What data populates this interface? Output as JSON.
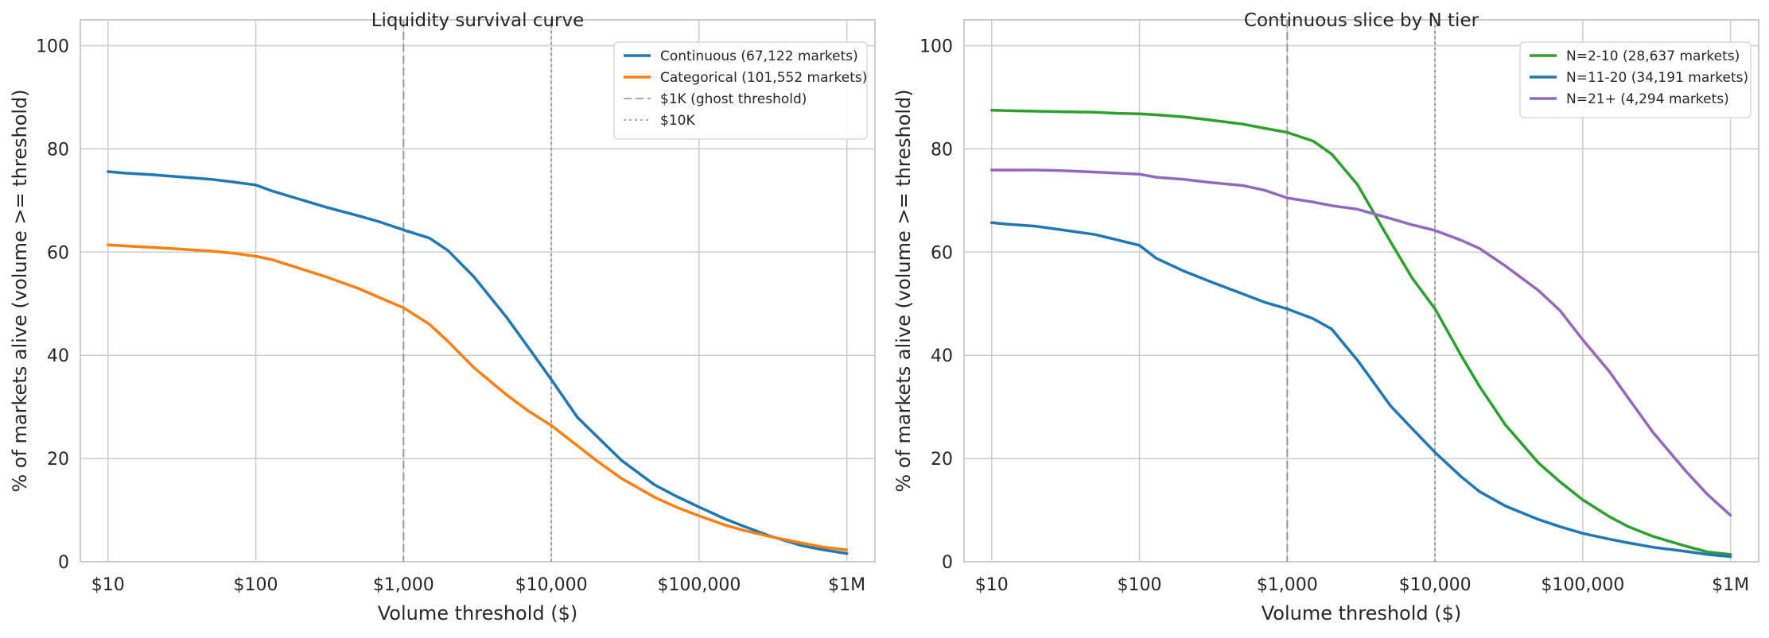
{
  "chart_data": [
    {
      "type": "line",
      "title": "Liquidity survival curve",
      "xlabel": "Volume threshold ($)",
      "ylabel": "% of markets alive (volume >= threshold)",
      "xscale": "log",
      "xlim": [
        6.5,
        1550000
      ],
      "ylim": [
        0,
        105
      ],
      "grid": true,
      "legend_position": "top-right",
      "x_ticks": [
        10,
        100,
        1000,
        10000,
        100000,
        1000000
      ],
      "x_tick_labels": [
        "$10",
        "$100",
        "$1,000",
        "$10,000",
        "$100,000",
        "$1M"
      ],
      "y_ticks": [
        0,
        20,
        40,
        60,
        80,
        100
      ],
      "y_tick_labels": [
        "0",
        "20",
        "40",
        "60",
        "80",
        "100"
      ],
      "series": [
        {
          "name": "Continuous (67,122 markets)",
          "color": "#1f77b4",
          "x": [
            10,
            13,
            20,
            30,
            50,
            70,
            100,
            130,
            200,
            300,
            500,
            700,
            1000,
            1500,
            2000,
            3000,
            5000,
            7000,
            10000,
            15000,
            20000,
            30000,
            50000,
            70000,
            100000,
            150000,
            200000,
            300000,
            500000,
            700000,
            1000000
          ],
          "values": [
            75.6,
            75.3,
            75.0,
            74.6,
            74.1,
            73.6,
            73.0,
            71.8,
            70.2,
            68.7,
            67.0,
            65.8,
            64.3,
            62.7,
            60.3,
            55.2,
            47.3,
            41.5,
            35.3,
            28.0,
            24.5,
            19.6,
            14.9,
            12.7,
            10.6,
            8.3,
            6.9,
            5.0,
            3.1,
            2.3,
            1.6
          ]
        },
        {
          "name": "Categorical (101,552 markets)",
          "color": "#ff7f0e",
          "x": [
            10,
            13,
            20,
            30,
            50,
            70,
            100,
            130,
            200,
            300,
            500,
            700,
            1000,
            1500,
            2000,
            3000,
            5000,
            7000,
            10000,
            15000,
            20000,
            30000,
            50000,
            70000,
            100000,
            150000,
            200000,
            300000,
            500000,
            700000,
            1000000
          ],
          "values": [
            61.4,
            61.2,
            60.9,
            60.6,
            60.2,
            59.8,
            59.2,
            58.5,
            56.8,
            55.2,
            52.9,
            51.1,
            49.2,
            46.0,
            42.7,
            37.6,
            32.3,
            29.2,
            26.4,
            22.5,
            19.7,
            16.1,
            12.5,
            10.6,
            8.9,
            7.1,
            6.1,
            4.9,
            3.6,
            2.8,
            2.3
          ]
        }
      ],
      "reference_lines": [
        {
          "x": 1000,
          "label": "$1K (ghost threshold)",
          "style": "dashed"
        },
        {
          "x": 10000,
          "label": "$10K",
          "style": "dotted"
        }
      ]
    },
    {
      "type": "line",
      "title": "Continuous slice by N tier",
      "xlabel": "Volume threshold ($)",
      "ylabel": "% of markets alive (volume >= threshold)",
      "xscale": "log",
      "xlim": [
        6.5,
        1550000
      ],
      "ylim": [
        0,
        105
      ],
      "grid": true,
      "legend_position": "top-right",
      "x_ticks": [
        10,
        100,
        1000,
        10000,
        100000,
        1000000
      ],
      "x_tick_labels": [
        "$10",
        "$100",
        "$1,000",
        "$10,000",
        "$100,000",
        "$1M"
      ],
      "y_ticks": [
        0,
        20,
        40,
        60,
        80,
        100
      ],
      "y_tick_labels": [
        "0",
        "20",
        "40",
        "60",
        "80",
        "100"
      ],
      "series": [
        {
          "name": "N=2-10 (28,637 markets)",
          "color": "#2ca02c",
          "x": [
            10,
            13,
            20,
            30,
            50,
            70,
            100,
            130,
            200,
            300,
            500,
            700,
            1000,
            1500,
            2000,
            3000,
            5000,
            7000,
            10000,
            15000,
            20000,
            30000,
            50000,
            70000,
            100000,
            150000,
            200000,
            300000,
            500000,
            700000,
            1000000
          ],
          "values": [
            87.5,
            87.4,
            87.3,
            87.2,
            87.1,
            86.9,
            86.8,
            86.6,
            86.2,
            85.6,
            84.8,
            84.0,
            83.2,
            81.5,
            79.0,
            73.0,
            62.0,
            55.0,
            49.0,
            40.0,
            34.0,
            26.5,
            19.2,
            15.5,
            12.0,
            8.8,
            6.9,
            4.9,
            3.0,
            1.9,
            1.4
          ]
        },
        {
          "name": "N=11-20 (34,191 markets)",
          "color": "#1f77b4",
          "x": [
            10,
            13,
            20,
            30,
            50,
            70,
            100,
            130,
            200,
            300,
            500,
            700,
            1000,
            1500,
            2000,
            3000,
            5000,
            7000,
            10000,
            15000,
            20000,
            30000,
            50000,
            70000,
            100000,
            150000,
            200000,
            300000,
            500000,
            700000,
            1000000
          ],
          "values": [
            65.7,
            65.4,
            65.0,
            64.3,
            63.4,
            62.4,
            61.3,
            58.8,
            56.3,
            54.3,
            51.9,
            50.3,
            49.0,
            47.1,
            45.1,
            39.0,
            30.2,
            25.8,
            21.2,
            16.5,
            13.6,
            10.8,
            8.2,
            6.8,
            5.5,
            4.4,
            3.7,
            2.8,
            2.0,
            1.4,
            1.0
          ]
        },
        {
          "name": "N=21+ (4,294 markets)",
          "color": "#9467bd",
          "x": [
            10,
            13,
            20,
            30,
            50,
            70,
            100,
            130,
            200,
            300,
            500,
            700,
            1000,
            1500,
            2000,
            3000,
            5000,
            7000,
            10000,
            15000,
            20000,
            30000,
            50000,
            70000,
            100000,
            150000,
            200000,
            300000,
            500000,
            700000,
            1000000
          ],
          "values": [
            75.9,
            75.9,
            75.9,
            75.8,
            75.5,
            75.3,
            75.1,
            74.5,
            74.1,
            73.5,
            72.9,
            72.0,
            70.5,
            69.7,
            69.0,
            68.3,
            66.5,
            65.3,
            64.2,
            62.3,
            60.7,
            57.3,
            52.6,
            48.7,
            43.0,
            37.0,
            32.0,
            25.0,
            17.5,
            13.0,
            9.0
          ]
        }
      ],
      "reference_lines": [
        {
          "x": 1000,
          "label": "",
          "style": "dashed"
        },
        {
          "x": 10000,
          "label": "",
          "style": "dotted"
        }
      ]
    }
  ]
}
